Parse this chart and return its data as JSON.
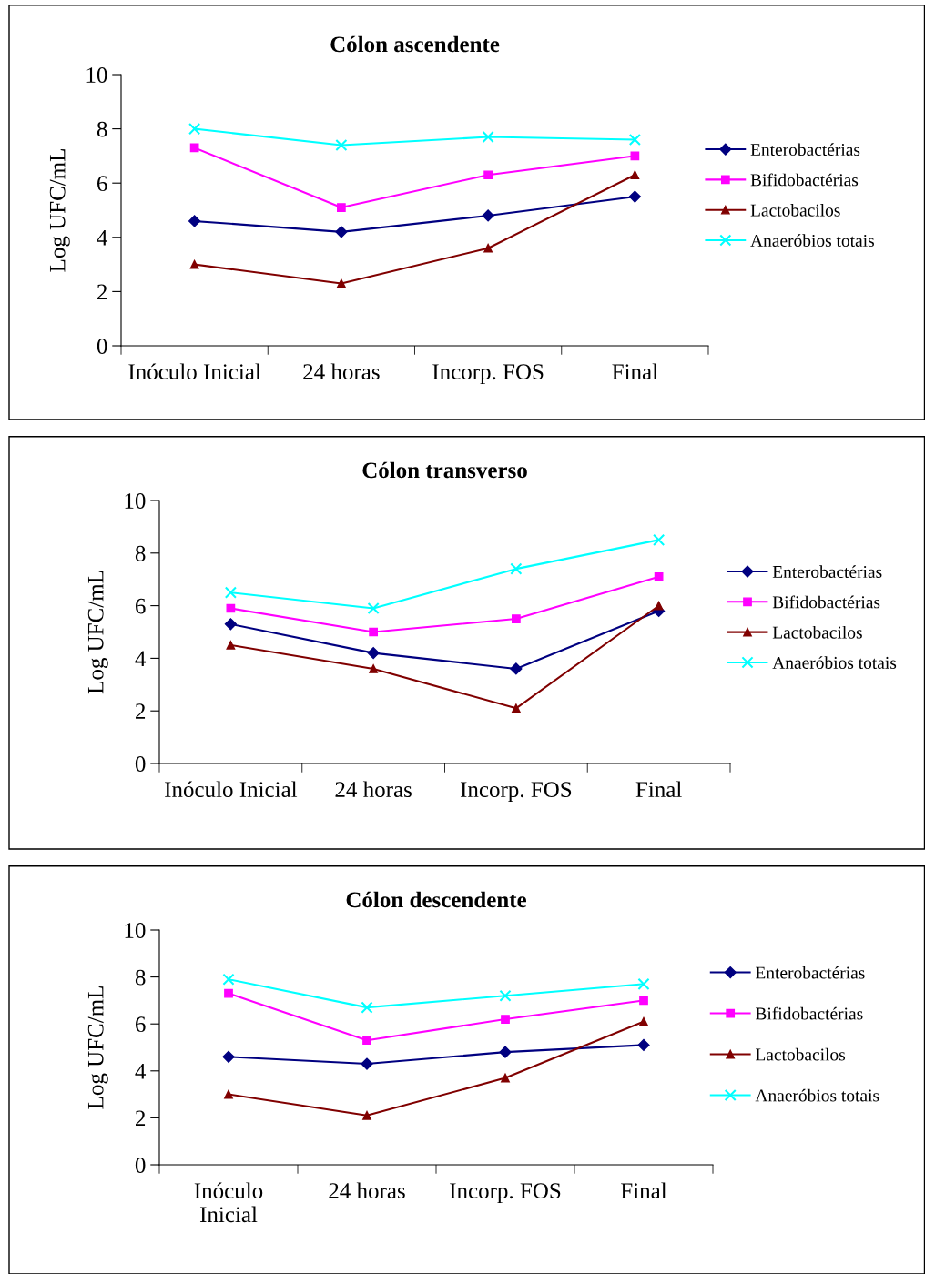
{
  "chart_data": [
    {
      "type": "line",
      "title": "Cólon ascendente",
      "ylabel": "Log UFC/mL",
      "categories": [
        "Inóculo Inicial",
        "24 horas",
        "Incorp. FOS",
        "Final"
      ],
      "ylim": [
        0,
        10
      ],
      "yticks": [
        0,
        2,
        4,
        6,
        8,
        10
      ],
      "legend": "right",
      "series": [
        {
          "name": "Enterobactérias",
          "color": "#000080",
          "marker": "diamond",
          "values": [
            4.6,
            4.2,
            4.8,
            5.5
          ]
        },
        {
          "name": "Bifidobactérias",
          "color": "#ff00ff",
          "marker": "square",
          "values": [
            7.3,
            5.1,
            6.3,
            7.0
          ]
        },
        {
          "name": "Lactobacilos",
          "color": "#800000",
          "marker": "triangle",
          "values": [
            3.0,
            2.3,
            3.6,
            6.3
          ]
        },
        {
          "name": "Anaeróbios totais",
          "color": "#00ffff",
          "marker": "cross",
          "values": [
            8.0,
            7.4,
            7.7,
            7.6
          ]
        }
      ]
    },
    {
      "type": "line",
      "title": "Cólon transverso",
      "ylabel": "Log UFC/mL",
      "categories": [
        "Inóculo Inicial",
        "24 horas",
        "Incorp. FOS",
        "Final"
      ],
      "ylim": [
        0,
        10
      ],
      "yticks": [
        0,
        2,
        4,
        6,
        8,
        10
      ],
      "legend": "right",
      "series": [
        {
          "name": "Enterobactérias",
          "color": "#000080",
          "marker": "diamond",
          "values": [
            5.3,
            4.2,
            3.6,
            5.8
          ]
        },
        {
          "name": "Bifidobactérias",
          "color": "#ff00ff",
          "marker": "square",
          "values": [
            5.9,
            5.0,
            5.5,
            7.1
          ]
        },
        {
          "name": "Lactobacilos",
          "color": "#800000",
          "marker": "triangle",
          "values": [
            4.5,
            3.6,
            2.1,
            6.0
          ]
        },
        {
          "name": "Anaeróbios totais",
          "color": "#00ffff",
          "marker": "cross",
          "values": [
            6.5,
            5.9,
            7.4,
            8.5
          ]
        }
      ]
    },
    {
      "type": "line",
      "title": "Cólon descendente",
      "ylabel": "Log UFC/mL",
      "categories": [
        "Inóculo\nInicial",
        "24 horas",
        "Incorp. FOS",
        "Final"
      ],
      "ylim": [
        0,
        10
      ],
      "yticks": [
        0,
        2,
        4,
        6,
        8,
        10
      ],
      "legend": "right",
      "series": [
        {
          "name": "Enterobactérias",
          "color": "#000080",
          "marker": "diamond",
          "values": [
            4.6,
            4.3,
            4.8,
            5.1
          ]
        },
        {
          "name": "Bifidobactérias",
          "color": "#ff00ff",
          "marker": "square",
          "values": [
            7.3,
            5.3,
            6.2,
            7.0
          ]
        },
        {
          "name": "Lactobacilos",
          "color": "#800000",
          "marker": "triangle",
          "values": [
            3.0,
            2.1,
            3.7,
            6.1
          ]
        },
        {
          "name": "Anaeróbios totais",
          "color": "#00ffff",
          "marker": "cross",
          "values": [
            7.9,
            6.7,
            7.2,
            7.7
          ]
        }
      ]
    }
  ]
}
